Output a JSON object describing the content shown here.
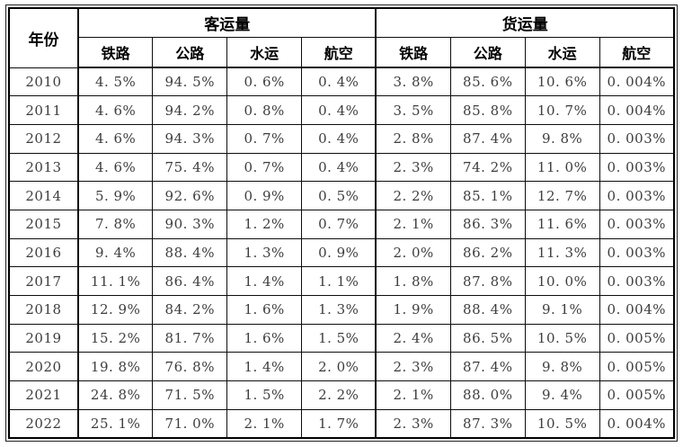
{
  "colors": {
    "background": "#ffffff",
    "outer_frame": "#1f1f1f",
    "table_border": "#000000",
    "header_text": "#000000",
    "cell_text": "#3d3d3d"
  },
  "table": {
    "year_header": "年份",
    "groups": [
      {
        "label": "客运量",
        "columns": [
          "铁路",
          "公路",
          "水运",
          "航空"
        ]
      },
      {
        "label": "货运量",
        "columns": [
          "铁路",
          "公路",
          "水运",
          "航空"
        ]
      }
    ],
    "rows": [
      {
        "year": "2010",
        "passenger": [
          "4.5%",
          "94.5%",
          "0.6%",
          "0.4%"
        ],
        "freight": [
          "3.8%",
          "85.6%",
          "10.6%",
          "0.004%"
        ]
      },
      {
        "year": "2011",
        "passenger": [
          "4.6%",
          "94.2%",
          "0.8%",
          "0.4%"
        ],
        "freight": [
          "3.5%",
          "85.8%",
          "10.7%",
          "0.004%"
        ]
      },
      {
        "year": "2012",
        "passenger": [
          "4.6%",
          "94.3%",
          "0.7%",
          "0.4%"
        ],
        "freight": [
          "2.8%",
          "87.4%",
          "9.8%",
          "0.003%"
        ]
      },
      {
        "year": "2013",
        "passenger": [
          "4.6%",
          "75.4%",
          "0.7%",
          "0.4%"
        ],
        "freight": [
          "2.3%",
          "74.2%",
          "11.0%",
          "0.003%"
        ]
      },
      {
        "year": "2014",
        "passenger": [
          "5.9%",
          "92.6%",
          "0.9%",
          "0.5%"
        ],
        "freight": [
          "2.2%",
          "85.1%",
          "12.7%",
          "0.003%"
        ]
      },
      {
        "year": "2015",
        "passenger": [
          "7.8%",
          "90.3%",
          "1.2%",
          "0.7%"
        ],
        "freight": [
          "2.1%",
          "86.3%",
          "11.6%",
          "0.003%"
        ]
      },
      {
        "year": "2016",
        "passenger": [
          "9.4%",
          "88.4%",
          "1.3%",
          "0.9%"
        ],
        "freight": [
          "2.0%",
          "86.2%",
          "11.3%",
          "0.003%"
        ]
      },
      {
        "year": "2017",
        "passenger": [
          "11.1%",
          "86.4%",
          "1.4%",
          "1.1%"
        ],
        "freight": [
          "1.8%",
          "87.8%",
          "10.0%",
          "0.003%"
        ]
      },
      {
        "year": "2018",
        "passenger": [
          "12.9%",
          "84.2%",
          "1.6%",
          "1.3%"
        ],
        "freight": [
          "1.9%",
          "88.4%",
          "9.1%",
          "0.004%"
        ]
      },
      {
        "year": "2019",
        "passenger": [
          "15.2%",
          "81.7%",
          "1.6%",
          "1.5%"
        ],
        "freight": [
          "2.4%",
          "86.5%",
          "10.5%",
          "0.005%"
        ]
      },
      {
        "year": "2020",
        "passenger": [
          "19.8%",
          "76.8%",
          "1.4%",
          "2.0%"
        ],
        "freight": [
          "2.3%",
          "87.4%",
          "9.8%",
          "0.005%"
        ]
      },
      {
        "year": "2021",
        "passenger": [
          "24.8%",
          "71.5%",
          "1.5%",
          "2.2%"
        ],
        "freight": [
          "2.1%",
          "88.0%",
          "9.4%",
          "0.005%"
        ]
      },
      {
        "year": "2022",
        "passenger": [
          "25.1%",
          "71.0%",
          "2.1%",
          "1.7%"
        ],
        "freight": [
          "2.3%",
          "87.3%",
          "10.5%",
          "0.004%"
        ]
      }
    ]
  }
}
